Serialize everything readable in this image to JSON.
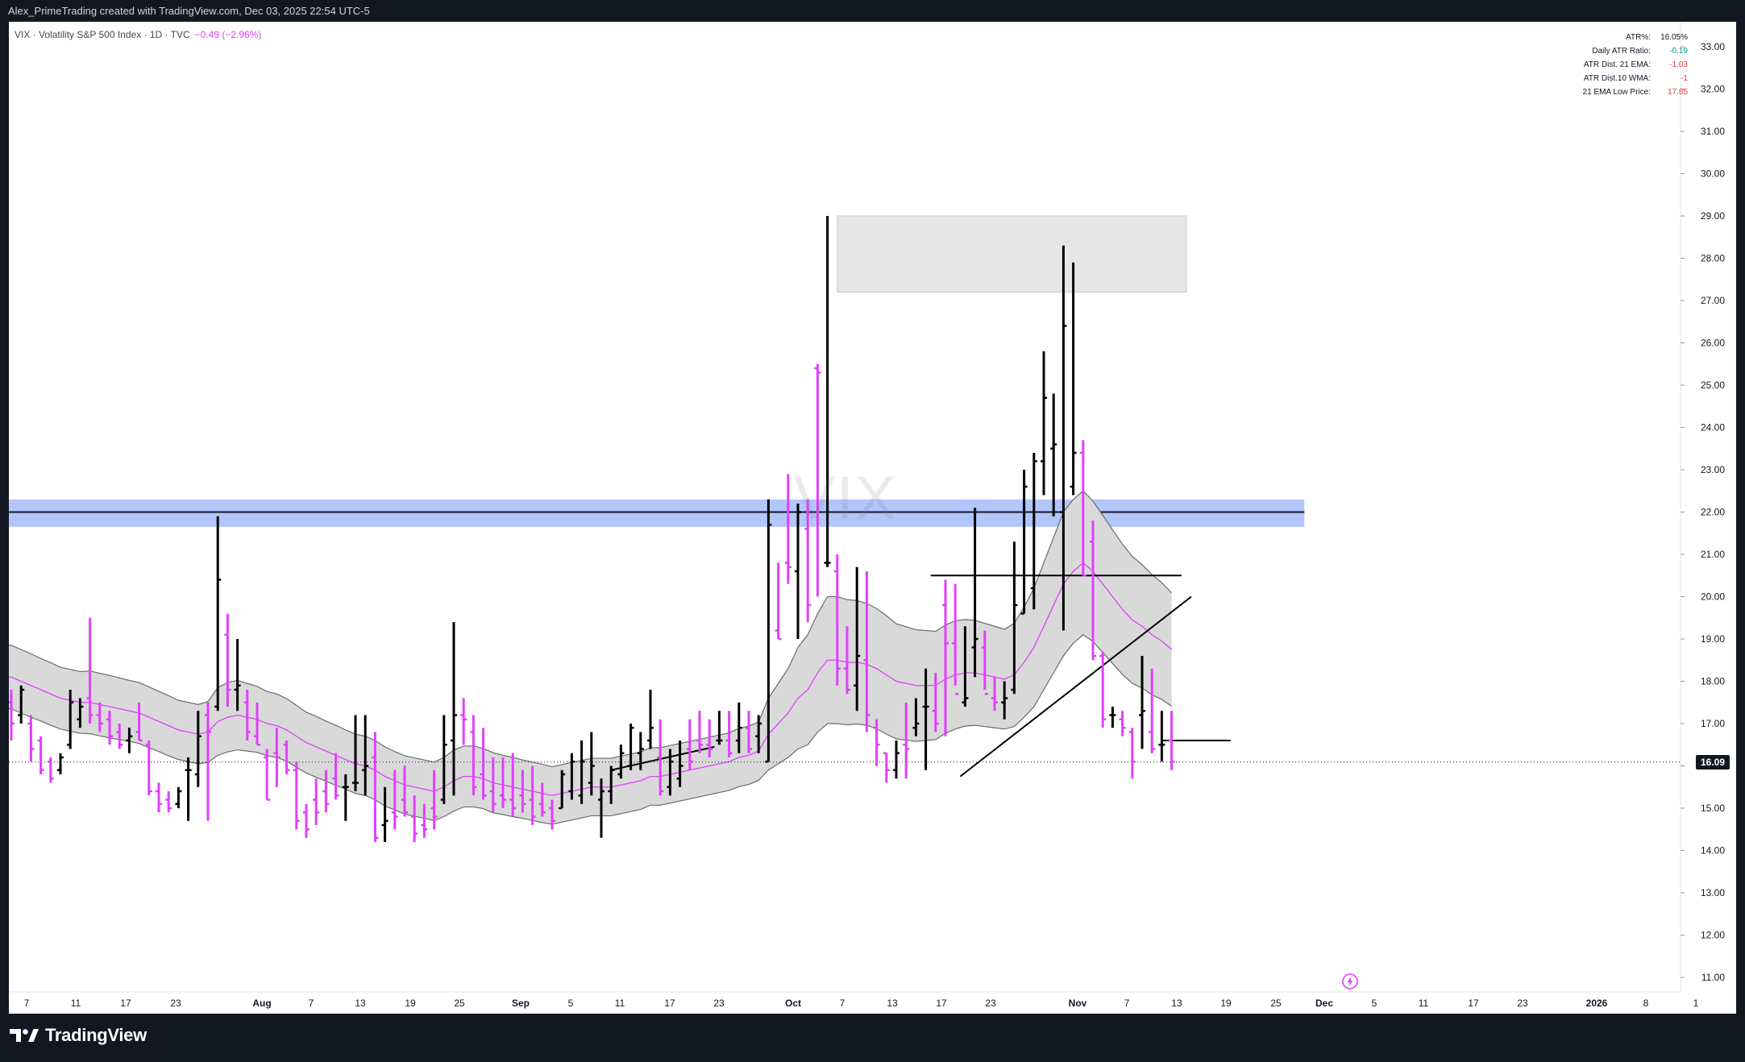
{
  "header": {
    "credit": "Alex_PrimeTrading created with TradingView.com, Dec 03, 2025 22:54 UTC-5"
  },
  "legend": {
    "symbol": "VIX · Volatility S&P 500 Index · 1D · TVC",
    "change": "−0.49 (−2.96%)"
  },
  "watermark": "VIX",
  "stats": [
    {
      "label": "ATR%:",
      "value": "16.05%",
      "color": "#131722"
    },
    {
      "label": "Daily ATR Ratio:",
      "value": "-0.19",
      "color": "#089981"
    },
    {
      "label": "ATR Dist. 21 EMA:",
      "value": "-1.03",
      "color": "#f23645"
    },
    {
      "label": "ATR Dist.10 WMA:",
      "value": "-1",
      "color": "#f23645"
    },
    {
      "label": "21 EMA Low Price:",
      "value": "17.85",
      "color": "#f23645"
    }
  ],
  "last_price_label": "16.09",
  "brand": "TradingView",
  "colors": {
    "up": "#000000",
    "down": "#e040fb",
    "ema": "#e040fb",
    "band_fill": "#d9d9d9",
    "zone_blue": "#b3c6fb",
    "zone_gray": "#e6e6e6"
  },
  "chart_data": {
    "type": "ohlc",
    "ylim": [
      10.6,
      33.4
    ],
    "y_ticks": [
      "11.00",
      "12.00",
      "13.00",
      "14.00",
      "15.00",
      "16.00",
      "17.00",
      "18.00",
      "19.00",
      "20.00",
      "21.00",
      "22.00",
      "23.00",
      "24.00",
      "25.00",
      "26.00",
      "27.00",
      "28.00",
      "29.00",
      "30.00",
      "31.00",
      "32.00",
      "33.00"
    ],
    "x_ticks": [
      "7",
      "11",
      "17",
      "23",
      "Aug",
      "7",
      "13",
      "19",
      "25",
      "Sep",
      "5",
      "11",
      "17",
      "23",
      "Oct",
      "7",
      "13",
      "17",
      "23",
      "Nov",
      "7",
      "13",
      "19",
      "25",
      "Dec",
      "5",
      "11",
      "17",
      "23",
      "2026",
      "8",
      "1"
    ],
    "last_price": 16.09,
    "bars": [
      [
        17.5,
        17.8,
        16.6,
        17.0
      ],
      [
        17.2,
        17.9,
        17.0,
        17.8
      ],
      [
        17.0,
        17.2,
        16.1,
        16.4
      ],
      [
        16.6,
        16.7,
        15.8,
        15.9
      ],
      [
        16.1,
        16.2,
        15.6,
        15.7
      ],
      [
        15.9,
        16.3,
        15.8,
        16.2
      ],
      [
        16.5,
        17.8,
        16.4,
        17.5
      ],
      [
        17.1,
        17.6,
        16.9,
        17.4
      ],
      [
        17.6,
        19.5,
        17.0,
        17.2
      ],
      [
        17.2,
        17.5,
        16.8,
        17.0
      ],
      [
        17.1,
        17.3,
        16.5,
        16.7
      ],
      [
        16.8,
        17.0,
        16.4,
        16.5
      ],
      [
        16.6,
        16.9,
        16.3,
        16.7
      ],
      [
        16.8,
        17.5,
        16.6,
        16.6
      ],
      [
        16.5,
        16.6,
        15.3,
        15.4
      ],
      [
        15.4,
        15.6,
        14.9,
        15.1
      ],
      [
        15.2,
        15.4,
        14.9,
        15.0
      ],
      [
        15.1,
        15.5,
        15.0,
        15.4
      ],
      [
        15.9,
        16.2,
        14.7,
        15.9
      ],
      [
        15.8,
        17.3,
        15.5,
        16.7
      ],
      [
        17.2,
        17.5,
        14.7,
        16.8
      ],
      [
        17.4,
        21.9,
        17.3,
        20.4
      ],
      [
        19.1,
        19.6,
        17.4,
        17.8
      ],
      [
        17.8,
        19.0,
        17.3,
        17.9
      ],
      [
        17.5,
        17.8,
        16.6,
        16.8
      ],
      [
        16.7,
        17.5,
        16.5,
        16.5
      ],
      [
        16.2,
        16.4,
        15.2,
        15.2
      ],
      [
        16.3,
        16.9,
        15.5,
        16.2
      ],
      [
        16.5,
        16.6,
        15.8,
        15.9
      ],
      [
        15.9,
        16.1,
        14.5,
        14.7
      ],
      [
        14.9,
        15.1,
        14.3,
        14.5
      ],
      [
        15.2,
        15.7,
        14.6,
        14.9
      ],
      [
        15.4,
        15.9,
        14.9,
        15.1
      ],
      [
        15.7,
        16.3,
        15.2,
        15.3
      ],
      [
        15.5,
        15.8,
        14.7,
        15.5
      ],
      [
        15.6,
        17.2,
        15.4,
        15.6
      ],
      [
        15.9,
        17.2,
        15.3,
        16.0
      ],
      [
        16.2,
        16.8,
        14.2,
        14.3
      ],
      [
        14.6,
        15.5,
        14.2,
        14.7
      ],
      [
        14.9,
        15.9,
        14.5,
        14.8
      ],
      [
        15.2,
        16.0,
        14.8,
        14.9
      ],
      [
        14.8,
        15.3,
        14.2,
        14.4
      ],
      [
        14.6,
        15.1,
        14.3,
        14.5
      ],
      [
        15.0,
        15.9,
        14.5,
        14.8
      ],
      [
        15.2,
        17.2,
        15.1,
        16.5
      ],
      [
        16.6,
        19.4,
        15.3,
        17.2
      ],
      [
        17.2,
        17.6,
        16.5,
        17.1
      ],
      [
        16.8,
        17.2,
        15.3,
        15.5
      ],
      [
        15.8,
        16.9,
        15.2,
        15.3
      ],
      [
        15.4,
        16.2,
        14.9,
        15.1
      ],
      [
        15.3,
        16.2,
        15.0,
        15.2
      ],
      [
        15.2,
        16.3,
        14.8,
        15.0
      ],
      [
        15.3,
        15.9,
        14.9,
        15.1
      ],
      [
        15.2,
        16.0,
        14.6,
        14.8
      ],
      [
        15.1,
        15.6,
        14.8,
        14.9
      ],
      [
        15.0,
        15.2,
        14.5,
        14.7
      ],
      [
        15.0,
        15.9,
        15.0,
        15.8
      ],
      [
        15.4,
        16.3,
        15.2,
        16.1
      ],
      [
        15.3,
        16.6,
        15.1,
        16.1
      ],
      [
        15.6,
        16.8,
        15.3,
        16.0
      ],
      [
        15.2,
        15.7,
        14.3,
        15.4
      ],
      [
        15.4,
        16.0,
        15.1,
        15.9
      ],
      [
        15.8,
        16.5,
        15.7,
        16.3
      ],
      [
        16.0,
        17.0,
        15.9,
        16.9
      ],
      [
        16.3,
        16.8,
        15.9,
        16.4
      ],
      [
        16.6,
        17.8,
        16.4,
        16.9
      ],
      [
        16.2,
        17.1,
        15.3,
        15.4
      ],
      [
        15.5,
        16.4,
        15.3,
        16.1
      ],
      [
        15.7,
        16.6,
        15.5,
        16.0
      ],
      [
        16.4,
        17.1,
        15.9,
        16.1
      ],
      [
        16.6,
        17.3,
        16.3,
        16.5
      ],
      [
        16.5,
        17.1,
        16.2,
        16.4
      ],
      [
        16.6,
        17.3,
        16.5,
        16.6
      ],
      [
        16.6,
        17.3,
        16.2,
        16.3
      ],
      [
        16.6,
        17.5,
        16.3,
        16.9
      ],
      [
        16.9,
        17.3,
        16.3,
        16.4
      ],
      [
        16.7,
        17.2,
        16.3,
        17.0
      ],
      [
        16.1,
        22.3,
        16.1,
        21.7
      ],
      [
        19.2,
        20.8,
        19.0,
        19.0
      ],
      [
        20.8,
        22.9,
        20.3,
        20.7
      ],
      [
        20.6,
        22.2,
        19.0,
        22.0
      ],
      [
        21.6,
        22.3,
        19.4,
        19.8
      ],
      [
        25.4,
        25.5,
        20.0,
        25.3
      ],
      [
        20.8,
        29.0,
        20.7,
        20.8
      ],
      [
        20.6,
        21.0,
        17.9,
        18.3
      ],
      [
        18.3,
        19.3,
        17.7,
        17.8
      ],
      [
        17.9,
        20.7,
        17.3,
        18.6
      ],
      [
        18.5,
        20.6,
        16.8,
        17.2
      ],
      [
        16.9,
        17.1,
        16.0,
        16.5
      ],
      [
        16.3,
        16.3,
        15.6,
        15.9
      ],
      [
        15.9,
        16.6,
        15.7,
        16.3
      ],
      [
        16.5,
        17.5,
        15.7,
        16.4
      ],
      [
        16.9,
        17.6,
        16.7,
        17.0
      ],
      [
        17.4,
        18.3,
        15.9,
        17.4
      ],
      [
        17.3,
        18.2,
        16.8,
        17.0
      ],
      [
        19.8,
        20.4,
        16.7,
        18.9
      ],
      [
        18.9,
        20.3,
        17.9,
        17.7
      ],
      [
        17.5,
        19.3,
        17.4,
        17.6
      ],
      [
        18.8,
        22.1,
        18.1,
        19.0
      ],
      [
        18.8,
        19.2,
        17.8,
        17.7
      ],
      [
        17.6,
        18.1,
        17.3,
        17.5
      ],
      [
        17.5,
        18.0,
        17.1,
        17.6
      ],
      [
        17.8,
        21.3,
        17.7,
        19.8
      ],
      [
        19.6,
        23.0,
        19.6,
        22.6
      ],
      [
        20.2,
        23.4,
        19.7,
        23.2
      ],
      [
        23.2,
        25.8,
        22.4,
        24.7
      ],
      [
        23.5,
        24.8,
        21.9,
        23.6
      ],
      [
        22.0,
        28.3,
        19.2,
        26.4
      ],
      [
        22.6,
        27.9,
        22.4,
        23.4
      ],
      [
        23.4,
        23.7,
        20.5,
        20.5
      ],
      [
        21.3,
        21.8,
        18.5,
        18.6
      ],
      [
        18.6,
        18.7,
        16.9,
        17.1
      ],
      [
        17.2,
        17.4,
        16.9,
        17.2
      ],
      [
        17.1,
        17.3,
        16.7,
        16.9
      ],
      [
        16.8,
        16.9,
        15.7,
        16.1
      ],
      [
        17.2,
        18.6,
        16.4,
        17.3
      ],
      [
        16.8,
        18.3,
        16.3,
        16.4
      ],
      [
        16.5,
        17.3,
        16.1,
        16.5
      ],
      [
        16.6,
        17.3,
        15.9,
        16.1
      ]
    ],
    "ema": [
      18.1,
      18.0,
      17.9,
      17.8,
      17.7,
      17.6,
      17.55,
      17.5,
      17.5,
      17.45,
      17.4,
      17.35,
      17.3,
      17.25,
      17.15,
      17.05,
      16.95,
      16.85,
      16.8,
      16.75,
      16.8,
      17.05,
      17.15,
      17.2,
      17.15,
      17.1,
      17.0,
      16.95,
      16.85,
      16.7,
      16.55,
      16.45,
      16.35,
      16.25,
      16.15,
      16.05,
      16.0,
      15.9,
      15.75,
      15.65,
      15.55,
      15.5,
      15.45,
      15.4,
      15.5,
      15.65,
      15.75,
      15.75,
      15.7,
      15.6,
      15.55,
      15.5,
      15.45,
      15.4,
      15.35,
      15.3,
      15.35,
      15.4,
      15.45,
      15.5,
      15.5,
      15.5,
      15.55,
      15.6,
      15.65,
      15.75,
      15.75,
      15.8,
      15.85,
      15.9,
      15.95,
      16.0,
      16.05,
      16.1,
      16.2,
      16.25,
      16.35,
      16.75,
      17.0,
      17.25,
      17.6,
      17.8,
      18.2,
      18.5,
      18.5,
      18.45,
      18.45,
      18.4,
      18.3,
      18.15,
      18.0,
      17.95,
      17.9,
      17.9,
      17.9,
      18.05,
      18.15,
      18.2,
      18.2,
      18.15,
      18.1,
      18.05,
      18.15,
      18.45,
      18.8,
      19.3,
      19.8,
      20.3,
      20.6,
      20.8,
      20.6,
      20.3,
      20.0,
      19.7,
      19.45,
      19.3,
      19.1,
      18.95,
      18.75
    ],
    "band_width": [
      0.75,
      0.75,
      0.75,
      0.74,
      0.74,
      0.73,
      0.73,
      0.73,
      0.74,
      0.74,
      0.74,
      0.73,
      0.72,
      0.72,
      0.72,
      0.71,
      0.71,
      0.7,
      0.7,
      0.7,
      0.72,
      0.8,
      0.82,
      0.82,
      0.8,
      0.78,
      0.76,
      0.75,
      0.74,
      0.73,
      0.72,
      0.72,
      0.71,
      0.71,
      0.7,
      0.7,
      0.7,
      0.7,
      0.7,
      0.69,
      0.69,
      0.69,
      0.69,
      0.69,
      0.7,
      0.72,
      0.72,
      0.72,
      0.71,
      0.71,
      0.7,
      0.7,
      0.69,
      0.69,
      0.69,
      0.68,
      0.68,
      0.68,
      0.68,
      0.68,
      0.68,
      0.68,
      0.68,
      0.68,
      0.68,
      0.68,
      0.68,
      0.68,
      0.68,
      0.68,
      0.68,
      0.68,
      0.68,
      0.68,
      0.69,
      0.69,
      0.69,
      0.85,
      0.95,
      1.05,
      1.2,
      1.3,
      1.4,
      1.5,
      1.5,
      1.48,
      1.46,
      1.44,
      1.42,
      1.4,
      1.36,
      1.34,
      1.32,
      1.3,
      1.28,
      1.28,
      1.28,
      1.26,
      1.24,
      1.22,
      1.2,
      1.18,
      1.22,
      1.3,
      1.4,
      1.5,
      1.6,
      1.7,
      1.7,
      1.7,
      1.66,
      1.62,
      1.58,
      1.54,
      1.5,
      1.46,
      1.42,
      1.38,
      1.34
    ],
    "zones": [
      {
        "kind": "blue",
        "y_low": 21.65,
        "y_high": 22.3,
        "x_start": 0,
        "x_end": 131.5,
        "line": 22.0
      },
      {
        "kind": "gray",
        "y_low": 27.2,
        "y_high": 29.0,
        "x_start": 84,
        "x_end": 119.5
      }
    ],
    "lines": [
      {
        "x1": 61,
        "y1": 15.9,
        "x2": 71.5,
        "y2": 16.45
      },
      {
        "x1": 96.5,
        "y1": 15.75,
        "x2": 120,
        "y2": 20.0
      },
      {
        "x1": 93.5,
        "y1": 20.5,
        "x2": 119,
        "y2": 20.5
      },
      {
        "x1": 117,
        "y1": 16.6,
        "x2": 124,
        "y2": 16.6
      }
    ]
  }
}
